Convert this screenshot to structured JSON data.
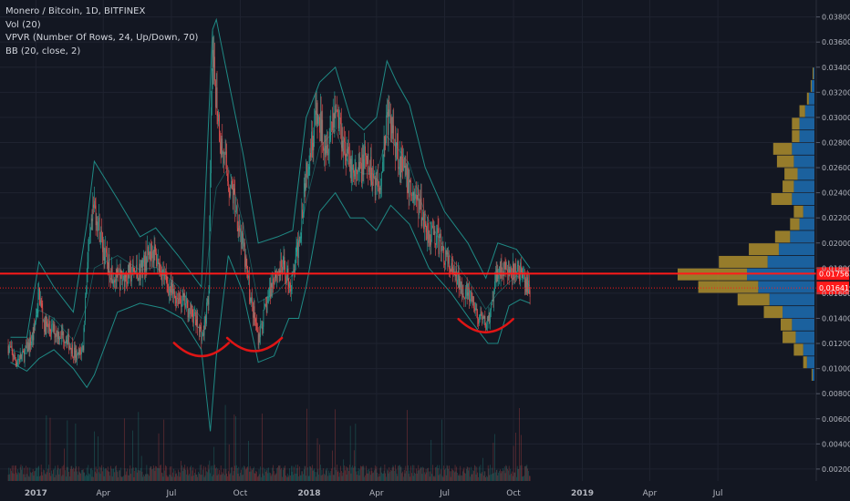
{
  "legend": {
    "title": "Monero / Bitcoin, 1D, BITFINEX",
    "indicators": [
      "Vol (20)",
      "VPVR (Number Of Rows, 24, Up/Down, 70)",
      "BB (20, close, 2)"
    ]
  },
  "colors": {
    "background": "#131722",
    "grid": "#1f2330",
    "axis_text": "#b2b5be",
    "candle_up": "#26a69a",
    "candle_down": "#ef5350",
    "bollinger": "#1f8a85",
    "vp_up": "#1d6fb4",
    "vp_down": "#b8962e",
    "hline": "#ff1a1a",
    "annotation": "#e01515"
  },
  "chart_data": {
    "type": "candlestick",
    "title": "Monero / Bitcoin, 1D, BITFINEX",
    "x_range": [
      "2016-11-14",
      "2019-11-07"
    ],
    "x_ticks": [
      {
        "date": "2017-01-01",
        "label": "2017",
        "bold": true
      },
      {
        "date": "2017-04-01",
        "label": "Apr"
      },
      {
        "date": "2017-07-01",
        "label": "Jul"
      },
      {
        "date": "2017-10-01",
        "label": "Oct"
      },
      {
        "date": "2018-01-01",
        "label": "2018",
        "bold": true
      },
      {
        "date": "2018-04-01",
        "label": "Apr"
      },
      {
        "date": "2018-07-01",
        "label": "Jul"
      },
      {
        "date": "2018-10-01",
        "label": "Oct"
      },
      {
        "date": "2019-01-01",
        "label": "2019",
        "bold": true
      },
      {
        "date": "2019-04-01",
        "label": "Apr"
      },
      {
        "date": "2019-07-01",
        "label": "Jul"
      }
    ],
    "y_range": [
      0.00105,
      0.03935
    ],
    "y_ticks": [
      "0.002000",
      "0.004000",
      "0.006000",
      "0.008000",
      "0.010000",
      "0.012000",
      "0.014000",
      "0.016000",
      "0.018000",
      "0.020000",
      "0.022000",
      "0.024000",
      "0.026000",
      "0.028000",
      "0.030000",
      "0.032000",
      "0.034000",
      "0.036000",
      "0.038000"
    ],
    "price_path": [
      [
        "2016-11-25",
        0.0118
      ],
      [
        "2016-12-05",
        0.0106
      ],
      [
        "2016-12-15",
        0.011
      ],
      [
        "2016-12-28",
        0.0125
      ],
      [
        "2017-01-05",
        0.016
      ],
      [
        "2017-01-12",
        0.0135
      ],
      [
        "2017-01-25",
        0.013
      ],
      [
        "2017-02-10",
        0.0125
      ],
      [
        "2017-02-25",
        0.0108
      ],
      [
        "2017-03-05",
        0.0118
      ],
      [
        "2017-03-10",
        0.018
      ],
      [
        "2017-03-20",
        0.023
      ],
      [
        "2017-04-05",
        0.0185
      ],
      [
        "2017-04-20",
        0.017
      ],
      [
        "2017-05-05",
        0.0175
      ],
      [
        "2017-05-20",
        0.0178
      ],
      [
        "2017-06-05",
        0.0195
      ],
      [
        "2017-06-20",
        0.0175
      ],
      [
        "2017-07-01",
        0.016
      ],
      [
        "2017-07-15",
        0.0155
      ],
      [
        "2017-08-01",
        0.014
      ],
      [
        "2017-08-12",
        0.0125
      ],
      [
        "2017-08-20",
        0.016
      ],
      [
        "2017-08-24",
        0.034
      ],
      [
        "2017-08-28",
        0.033
      ],
      [
        "2017-09-05",
        0.028
      ],
      [
        "2017-09-15",
        0.025
      ],
      [
        "2017-09-25",
        0.023
      ],
      [
        "2017-10-05",
        0.0195
      ],
      [
        "2017-10-15",
        0.0155
      ],
      [
        "2017-10-25",
        0.0125
      ],
      [
        "2017-11-05",
        0.015
      ],
      [
        "2017-11-15",
        0.0175
      ],
      [
        "2017-11-28",
        0.018
      ],
      [
        "2017-12-08",
        0.0165
      ],
      [
        "2017-12-18",
        0.02
      ],
      [
        "2017-12-28",
        0.026
      ],
      [
        "2018-01-10",
        0.03
      ],
      [
        "2018-01-25",
        0.028
      ],
      [
        "2018-02-05",
        0.031
      ],
      [
        "2018-02-20",
        0.027
      ],
      [
        "2018-03-05",
        0.025
      ],
      [
        "2018-03-15",
        0.0265
      ],
      [
        "2018-03-25",
        0.0255
      ],
      [
        "2018-04-05",
        0.0245
      ],
      [
        "2018-04-15",
        0.03
      ],
      [
        "2018-04-25",
        0.0285
      ],
      [
        "2018-05-05",
        0.026
      ],
      [
        "2018-05-15",
        0.0245
      ],
      [
        "2018-05-28",
        0.023
      ],
      [
        "2018-06-08",
        0.021
      ],
      [
        "2018-06-20",
        0.0205
      ],
      [
        "2018-07-01",
        0.019
      ],
      [
        "2018-07-12",
        0.0175
      ],
      [
        "2018-07-25",
        0.0165
      ],
      [
        "2018-08-05",
        0.0155
      ],
      [
        "2018-08-15",
        0.014
      ],
      [
        "2018-08-25",
        0.0135
      ],
      [
        "2018-09-01",
        0.0145
      ],
      [
        "2018-09-10",
        0.018
      ],
      [
        "2018-09-20",
        0.0178
      ],
      [
        "2018-09-30",
        0.0175
      ],
      [
        "2018-10-08",
        0.018
      ],
      [
        "2018-10-15",
        0.0168
      ],
      [
        "2018-10-23",
        0.0164
      ]
    ],
    "bb_upper": [
      [
        "2016-11-28",
        0.0125
      ],
      [
        "2016-12-20",
        0.0125
      ],
      [
        "2017-01-05",
        0.0185
      ],
      [
        "2017-01-25",
        0.0165
      ],
      [
        "2017-02-20",
        0.0145
      ],
      [
        "2017-03-10",
        0.0215
      ],
      [
        "2017-03-20",
        0.0265
      ],
      [
        "2017-04-20",
        0.0235
      ],
      [
        "2017-05-20",
        0.0205
      ],
      [
        "2017-06-10",
        0.0212
      ],
      [
        "2017-07-10",
        0.019
      ],
      [
        "2017-08-10",
        0.0165
      ],
      [
        "2017-08-25",
        0.037
      ],
      [
        "2017-08-30",
        0.0378
      ],
      [
        "2017-09-15",
        0.033
      ],
      [
        "2017-10-05",
        0.027
      ],
      [
        "2017-10-25",
        0.02
      ],
      [
        "2017-11-20",
        0.0205
      ],
      [
        "2017-12-10",
        0.021
      ],
      [
        "2017-12-28",
        0.03
      ],
      [
        "2018-01-15",
        0.0328
      ],
      [
        "2018-02-05",
        0.034
      ],
      [
        "2018-02-25",
        0.03
      ],
      [
        "2018-03-15",
        0.029
      ],
      [
        "2018-04-01",
        0.03
      ],
      [
        "2018-04-15",
        0.0345
      ],
      [
        "2018-04-28",
        0.0328
      ],
      [
        "2018-05-15",
        0.031
      ],
      [
        "2018-06-05",
        0.026
      ],
      [
        "2018-07-01",
        0.0225
      ],
      [
        "2018-08-01",
        0.02
      ],
      [
        "2018-08-25",
        0.0172
      ],
      [
        "2018-09-10",
        0.02
      ],
      [
        "2018-10-05",
        0.0195
      ],
      [
        "2018-10-23",
        0.018
      ]
    ],
    "bb_lower": [
      [
        "2016-11-28",
        0.0105
      ],
      [
        "2016-12-20",
        0.0098
      ],
      [
        "2017-01-05",
        0.0108
      ],
      [
        "2017-01-25",
        0.0115
      ],
      [
        "2017-02-20",
        0.01
      ],
      [
        "2017-03-10",
        0.0085
      ],
      [
        "2017-03-20",
        0.0095
      ],
      [
        "2017-04-20",
        0.0145
      ],
      [
        "2017-05-20",
        0.0152
      ],
      [
        "2017-06-20",
        0.0148
      ],
      [
        "2017-07-15",
        0.014
      ],
      [
        "2017-08-10",
        0.0115
      ],
      [
        "2017-08-22",
        0.005
      ],
      [
        "2017-08-30",
        0.011
      ],
      [
        "2017-09-15",
        0.019
      ],
      [
        "2017-10-05",
        0.016
      ],
      [
        "2017-10-25",
        0.0105
      ],
      [
        "2017-11-15",
        0.011
      ],
      [
        "2017-12-05",
        0.014
      ],
      [
        "2017-12-18",
        0.014
      ],
      [
        "2017-12-28",
        0.0165
      ],
      [
        "2018-01-15",
        0.0225
      ],
      [
        "2018-02-05",
        0.024
      ],
      [
        "2018-02-25",
        0.022
      ],
      [
        "2018-03-15",
        0.022
      ],
      [
        "2018-04-01",
        0.021
      ],
      [
        "2018-04-20",
        0.023
      ],
      [
        "2018-05-15",
        0.0215
      ],
      [
        "2018-06-10",
        0.018
      ],
      [
        "2018-07-10",
        0.016
      ],
      [
        "2018-08-05",
        0.0138
      ],
      [
        "2018-08-28",
        0.012
      ],
      [
        "2018-09-10",
        0.012
      ],
      [
        "2018-09-25",
        0.015
      ],
      [
        "2018-10-10",
        0.0155
      ],
      [
        "2018-10-23",
        0.0152
      ]
    ],
    "volume_profile": [
      {
        "price": 0.0095,
        "up": 0.002,
        "down": 0.001
      },
      {
        "price": 0.0105,
        "up": 0.008,
        "down": 0.004
      },
      {
        "price": 0.0115,
        "up": 0.012,
        "down": 0.01
      },
      {
        "price": 0.0125,
        "up": 0.02,
        "down": 0.014
      },
      {
        "price": 0.0135,
        "up": 0.024,
        "down": 0.012
      },
      {
        "price": 0.0145,
        "up": 0.034,
        "down": 0.02
      },
      {
        "price": 0.0155,
        "up": 0.048,
        "down": 0.034
      },
      {
        "price": 0.0165,
        "up": 0.06,
        "down": 0.064
      },
      {
        "price": 0.0175,
        "up": 0.072,
        "down": 0.074
      },
      {
        "price": 0.0185,
        "up": 0.05,
        "down": 0.052
      },
      {
        "price": 0.0195,
        "up": 0.038,
        "down": 0.032
      },
      {
        "price": 0.0205,
        "up": 0.026,
        "down": 0.016
      },
      {
        "price": 0.0215,
        "up": 0.016,
        "down": 0.01
      },
      {
        "price": 0.0225,
        "up": 0.012,
        "down": 0.01
      },
      {
        "price": 0.0235,
        "up": 0.024,
        "down": 0.022
      },
      {
        "price": 0.0245,
        "up": 0.022,
        "down": 0.012
      },
      {
        "price": 0.0255,
        "up": 0.018,
        "down": 0.014
      },
      {
        "price": 0.0265,
        "up": 0.022,
        "down": 0.018
      },
      {
        "price": 0.0275,
        "up": 0.024,
        "down": 0.02
      },
      {
        "price": 0.0285,
        "up": 0.016,
        "down": 0.008
      },
      {
        "price": 0.0295,
        "up": 0.016,
        "down": 0.008
      },
      {
        "price": 0.0305,
        "up": 0.01,
        "down": 0.006
      },
      {
        "price": 0.0315,
        "up": 0.006,
        "down": 0.002
      },
      {
        "price": 0.0325,
        "up": 0.003,
        "down": 0.001
      },
      {
        "price": 0.0335,
        "up": 0.001,
        "down": 0.001
      }
    ],
    "horizontal_lines": [
      {
        "value": 0.017565,
        "label": "0.017565",
        "style": "solid"
      },
      {
        "value": 0.016419,
        "label": "0.016419",
        "style": "dotted"
      }
    ],
    "annotations": [
      {
        "type": "arc",
        "center_date": "2017-08-10",
        "value": 0.0111
      },
      {
        "type": "arc",
        "center_date": "2017-10-20",
        "value": 0.0115
      },
      {
        "type": "arc",
        "center_date": "2018-08-25",
        "value": 0.013
      }
    ]
  }
}
